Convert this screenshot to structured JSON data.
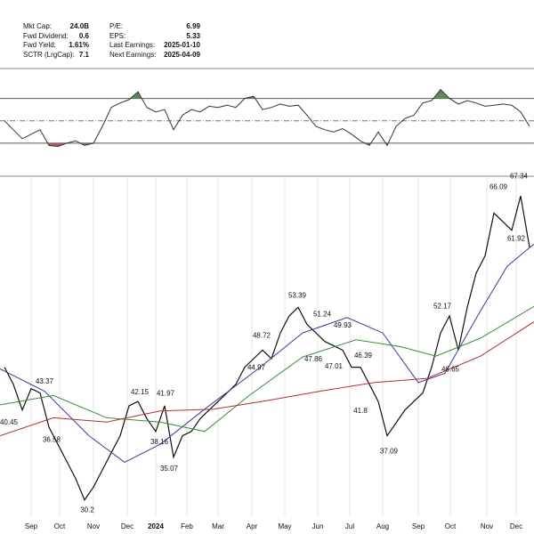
{
  "header": {
    "fields": [
      {
        "label": "Mkt Cap:",
        "value": "24.0B"
      },
      {
        "label": "Fwd Dividend:",
        "value": "0.6"
      },
      {
        "label": "Fwd Yield:",
        "value": "1.61%"
      },
      {
        "label": "SCTR (LrgCap):",
        "value": "7.1"
      },
      {
        "label": "P/E:",
        "value": "6.99"
      },
      {
        "label": "EPS:",
        "value": "5.33"
      },
      {
        "label": "Last Earnings:",
        "value": "2025-01-10"
      },
      {
        "label": "Next Earnings:",
        "value": "2025-04-09"
      }
    ]
  },
  "chart_data": [
    {
      "type": "line",
      "panel": "rsi",
      "xlim": [
        -0.5,
        59.5
      ],
      "ylim": [
        2,
        96
      ],
      "yticks": [
        30,
        50,
        70
      ],
      "overbought": 70,
      "oversold": 30,
      "overbought_color": "#5b8a5b",
      "oversold_color": "#a86060",
      "series": [
        {
          "color": "#333333",
          "values": [
            50,
            42,
            34,
            38,
            42,
            28,
            27,
            30,
            32,
            28,
            30,
            45,
            62,
            66,
            69,
            76,
            62,
            58,
            60,
            42,
            55,
            60,
            58,
            63,
            62,
            64,
            62,
            70,
            72,
            60,
            62,
            65,
            63,
            64,
            55,
            45,
            42,
            40,
            43,
            38,
            32,
            28,
            40,
            28,
            45,
            52,
            55,
            66,
            68,
            78,
            70,
            65,
            68,
            66,
            63,
            64,
            65,
            64,
            58,
            45
          ]
        }
      ]
    },
    {
      "type": "line",
      "panel": "price",
      "xlim": [
        -0.5,
        59.5
      ],
      "ylim": [
        28.6,
        68.1
      ],
      "grid": true,
      "xticks": [
        {
          "value": 3,
          "label": "Sep"
        },
        {
          "value": 6.2,
          "label": "Oct"
        },
        {
          "value": 10,
          "label": "Nov"
        },
        {
          "value": 13.8,
          "label": "Dec"
        },
        {
          "value": 17,
          "label": "2024"
        },
        {
          "value": 20.5,
          "label": "Feb"
        },
        {
          "value": 24,
          "label": "Mar"
        },
        {
          "value": 27.8,
          "label": "Apr"
        },
        {
          "value": 31.5,
          "label": "May"
        },
        {
          "value": 35.2,
          "label": "Jun"
        },
        {
          "value": 38.8,
          "label": "Jul"
        },
        {
          "value": 42.5,
          "label": "Aug"
        },
        {
          "value": 46.5,
          "label": "Sep"
        },
        {
          "value": 50.1,
          "label": "Oct"
        },
        {
          "value": 54.2,
          "label": "Nov"
        },
        {
          "value": 57.5,
          "label": "Dec"
        }
      ],
      "bold_xtick": 4,
      "series": [
        {
          "color": "#111111",
          "width": 1.2,
          "x": [
            0,
            1,
            2,
            3,
            4,
            5,
            6,
            7,
            8,
            9,
            10,
            11,
            12,
            13,
            14,
            15,
            16,
            17,
            18,
            19,
            20,
            21,
            22,
            23,
            24,
            25,
            26,
            27,
            28,
            29,
            30,
            31,
            32,
            33,
            34,
            35,
            36,
            37,
            38,
            39,
            40,
            41,
            42,
            43,
            44,
            45,
            46,
            47,
            48,
            49,
            50,
            51,
            52,
            53,
            54,
            55,
            56,
            57,
            58,
            59
          ],
          "values": [
            46,
            44,
            41,
            43.5,
            43,
            39,
            37,
            35,
            33,
            30.5,
            32,
            34,
            36,
            38,
            41.5,
            42,
            40,
            38.5,
            41.5,
            35.5,
            38,
            38.5,
            40,
            41,
            42,
            43,
            44,
            46,
            47,
            48,
            47,
            50,
            52,
            53,
            51,
            50,
            49,
            48.5,
            48,
            46,
            46,
            44,
            42,
            38,
            39.5,
            41,
            42,
            43,
            46,
            50,
            52,
            48,
            53,
            57,
            59,
            64,
            63,
            62,
            66,
            60
          ]
        },
        {
          "color": "#3a3a9a",
          "width": 1,
          "x": [
            -0.5,
            4.5,
            9.5,
            13.5,
            17.5,
            22.5,
            28.5,
            33.5,
            38.5,
            42.5,
            46.5,
            49.5,
            53.5,
            56.5,
            59.5
          ],
          "values": [
            45.8,
            43.2,
            38,
            34.9,
            37,
            41.1,
            45.8,
            50,
            51.8,
            50,
            44.2,
            45.3,
            52.6,
            57.8,
            60.4
          ]
        },
        {
          "color": "#3a8a3a",
          "width": 1,
          "x": [
            -0.5,
            5.5,
            11.5,
            17.5,
            22.5,
            27.5,
            33.5,
            39.5,
            44.5,
            48.5,
            53.5,
            59.5
          ],
          "values": [
            41.6,
            42.7,
            40.1,
            39.6,
            38.5,
            42.7,
            47.2,
            49.2,
            48.4,
            47.3,
            49.4,
            53.1
          ]
        },
        {
          "color": "#b03030",
          "width": 1,
          "x": [
            -0.5,
            5.5,
            11.5,
            17.5,
            23.5,
            29.5,
            35.5,
            41.5,
            47.5,
            53.5,
            59.5
          ],
          "values": [
            38,
            40.1,
            39.6,
            40.9,
            41.1,
            42.1,
            43.2,
            44.2,
            44.7,
            47.3,
            51.3
          ]
        }
      ],
      "annotations": [
        {
          "x": 0.5,
          "value": 40.45,
          "side": "below"
        },
        {
          "x": 4.5,
          "value": 43.37,
          "side": "above"
        },
        {
          "x": 5.3,
          "value": 36.58,
          "side": "above"
        },
        {
          "x": 9.3,
          "value": 30.2,
          "side": "below"
        },
        {
          "x": 15.2,
          "value": 42.15,
          "side": "above"
        },
        {
          "x": 17.4,
          "value": 38.16,
          "side": "below"
        },
        {
          "x": 18.1,
          "value": 41.97,
          "side": "above"
        },
        {
          "x": 18.5,
          "value": 35.07,
          "side": "below"
        },
        {
          "x": 28.3,
          "value": 44.97,
          "side": "above"
        },
        {
          "x": 28.9,
          "value": 48.72,
          "side": "above"
        },
        {
          "x": 32.9,
          "value": 53.39,
          "side": "above"
        },
        {
          "x": 35.7,
          "value": 51.24,
          "side": "above"
        },
        {
          "x": 34.7,
          "value": 47.86,
          "side": "below"
        },
        {
          "x": 38,
          "value": 49.93,
          "side": "above"
        },
        {
          "x": 37,
          "value": 47.01,
          "side": "below"
        },
        {
          "x": 40.3,
          "value": 46.39,
          "side": "above"
        },
        {
          "x": 40,
          "value": 41.8,
          "side": "below"
        },
        {
          "x": 43.2,
          "value": 37.09,
          "side": "below"
        },
        {
          "x": 49.2,
          "value": 52.17,
          "side": "above"
        },
        {
          "x": 50.1,
          "value": 46.65,
          "side": "below"
        },
        {
          "x": 55.5,
          "value": 66.09,
          "side": "above"
        },
        {
          "x": 57.5,
          "value": 61.92,
          "side": "below"
        },
        {
          "x": 57.8,
          "value": 67.34,
          "side": "above"
        }
      ]
    }
  ]
}
